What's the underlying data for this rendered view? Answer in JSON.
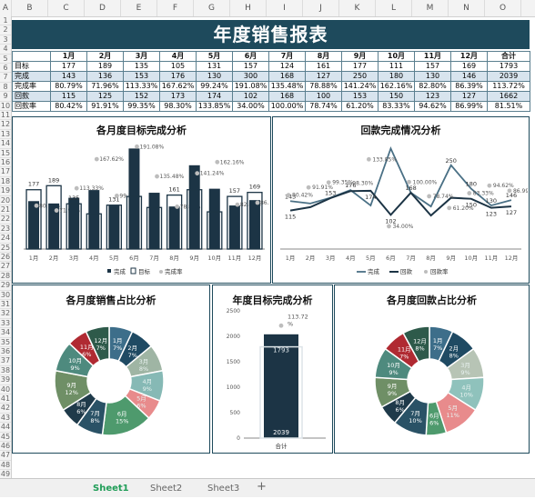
{
  "columns": [
    "A",
    "B",
    "C",
    "D",
    "E",
    "F",
    "G",
    "H",
    "I",
    "J",
    "K",
    "L",
    "M",
    "N",
    "O"
  ],
  "rows": [
    "1",
    "2",
    "3",
    "4",
    "5",
    "6",
    "7",
    "8",
    "9",
    "10",
    "11",
    "12",
    "13",
    "14",
    "15",
    "16",
    "17",
    "18",
    "19",
    "20",
    "21",
    "22",
    "23",
    "24",
    "25",
    "26",
    "27",
    "28",
    "29",
    "30",
    "31",
    "32",
    "33",
    "34",
    "35",
    "36",
    "37",
    "38",
    "39",
    "40",
    "41",
    "42",
    "43",
    "44",
    "45",
    "46",
    "47",
    "48",
    "49"
  ],
  "title": "年度销售报表",
  "table": {
    "header": [
      "",
      "1月",
      "2月",
      "3月",
      "4月",
      "5月",
      "6月",
      "7月",
      "8月",
      "9月",
      "10月",
      "11月",
      "12月",
      "合计"
    ],
    "rows": [
      [
        "目标",
        "177",
        "189",
        "135",
        "105",
        "131",
        "157",
        "124",
        "161",
        "177",
        "111",
        "157",
        "169",
        "1793"
      ],
      [
        "完成",
        "143",
        "136",
        "153",
        "176",
        "130",
        "300",
        "168",
        "127",
        "250",
        "180",
        "130",
        "146",
        "2039"
      ],
      [
        "完成率",
        "80.79%",
        "71.96%",
        "113.33%",
        "167.62%",
        "99.24%",
        "191.08%",
        "135.48%",
        "78.88%",
        "141.24%",
        "162.16%",
        "82.80%",
        "86.39%",
        "113.72%"
      ],
      [
        "回款",
        "115",
        "125",
        "152",
        "173",
        "174",
        "102",
        "168",
        "100",
        "153",
        "150",
        "123",
        "127",
        "1662"
      ],
      [
        "回款率",
        "80.42%",
        "91.91%",
        "99.35%",
        "98.30%",
        "133.85%",
        "34.00%",
        "100.00%",
        "78.74%",
        "61.20%",
        "83.33%",
        "94.62%",
        "86.99%",
        "81.51%"
      ]
    ]
  },
  "months": [
    "1月",
    "2月",
    "3月",
    "4月",
    "5月",
    "6月",
    "7月",
    "8月",
    "9月",
    "10月",
    "11月",
    "12月"
  ],
  "chart1": {
    "title": "各月度目标完成分析",
    "legend": [
      "完成",
      "目标",
      "完成率"
    ],
    "values_target": [
      177,
      189,
      135,
      105,
      131,
      157,
      124,
      161,
      177,
      111,
      157,
      169
    ],
    "values_done": [
      143,
      136,
      153,
      176,
      130,
      300,
      168,
      127,
      250,
      180,
      130,
      146
    ],
    "rate_labels": [
      "80.79%",
      "71.96%",
      "113.33%",
      "167.62%",
      "99.24%",
      "191.08%",
      "135.48%",
      "78.88%",
      "141.24%",
      "162.16%",
      "82.80%",
      "86.39%"
    ],
    "rate_values": [
      80.79,
      71.96,
      113.33,
      167.62,
      99.24,
      191.08,
      135.48,
      78.88,
      141.24,
      162.16,
      82.8,
      86.39
    ],
    "target_labels": [
      "177",
      "189",
      "135",
      "",
      "131",
      "",
      "",
      "161",
      "",
      "",
      "157",
      "169"
    ]
  },
  "chart2": {
    "title": "回款完成情况分析",
    "legend": [
      "完成",
      "回款",
      "回款率"
    ],
    "done": [
      143,
      136,
      153,
      176,
      130,
      300,
      168,
      127,
      250,
      180,
      130,
      146
    ],
    "paid": [
      115,
      125,
      152,
      173,
      174,
      102,
      168,
      100,
      153,
      150,
      123,
      127
    ],
    "rate_labels": [
      "80.42%",
      "91.91%",
      "99.35%",
      "98.30%",
      "133.85%",
      "34.00%",
      "100.00%",
      "78.74%",
      "61.20%",
      "83.33%",
      "94.62%",
      "86.99%"
    ],
    "rate_values": [
      80.42,
      91.91,
      99.35,
      98.3,
      133.85,
      34.0,
      100.0,
      78.74,
      61.2,
      83.33,
      94.62,
      86.99
    ],
    "done_labels": [
      "143",
      "",
      "153",
      "176",
      "",
      "",
      "168",
      "",
      "250",
      "180",
      "130",
      "146"
    ],
    "paid_labels": [
      "115",
      "",
      "",
      "",
      "174",
      "102",
      "",
      "",
      "",
      "150",
      "123",
      "127"
    ]
  },
  "chart3": {
    "title": "各月度销售占比分析",
    "labels": [
      "1月 7%",
      "2月 7%",
      "3月 8%",
      "4月 9%",
      "5月 6%",
      "6月 15%",
      "7月 8%",
      "8月 6%",
      "9月 12%",
      "10月 9%",
      "11月 6%",
      "12月 7%"
    ],
    "values": [
      7,
      7,
      8,
      9,
      6,
      15,
      8,
      6,
      12,
      9,
      6,
      7
    ],
    "colors": [
      "#3d6e8a",
      "#1f4a63",
      "#9fb5a4",
      "#86b9b5",
      "#e88b8c",
      "#4e9a6d",
      "#2a5266",
      "#1f3a4a",
      "#6f8f66",
      "#4e8a7e",
      "#b02a32",
      "#2e5a4a"
    ]
  },
  "chart4": {
    "title": "年度目标完成分析",
    "category": "合计",
    "target": 1793,
    "done": 2039,
    "rate_label": "113.72 %",
    "rate": 113.72,
    "ymax": 2500,
    "ticks": [
      "2500",
      "2000",
      "1500",
      "1000",
      "500",
      "0"
    ]
  },
  "chart5": {
    "title": "各月度回款占比分析",
    "labels": [
      "1月 7%",
      "2月 8%",
      "3月 9%",
      "4月 10%",
      "5月 11%",
      "6月 6%",
      "7月 10%",
      "8月 6%",
      "9月 9%",
      "10月 9%",
      "11月 7%",
      "12月 8%"
    ],
    "values": [
      7,
      8,
      9,
      10,
      11,
      6,
      10,
      6,
      9,
      9,
      7,
      8
    ],
    "colors": [
      "#3d6e8a",
      "#1f4a63",
      "#b7c4b5",
      "#8fc2bc",
      "#e88b8c",
      "#4e9a6d",
      "#2a5266",
      "#1f3a4a",
      "#6f8f66",
      "#4e8a7e",
      "#b02a32",
      "#2e5a4a"
    ]
  },
  "tabs": [
    "Sheet1",
    "Sheet2",
    "Sheet3",
    "+"
  ]
}
